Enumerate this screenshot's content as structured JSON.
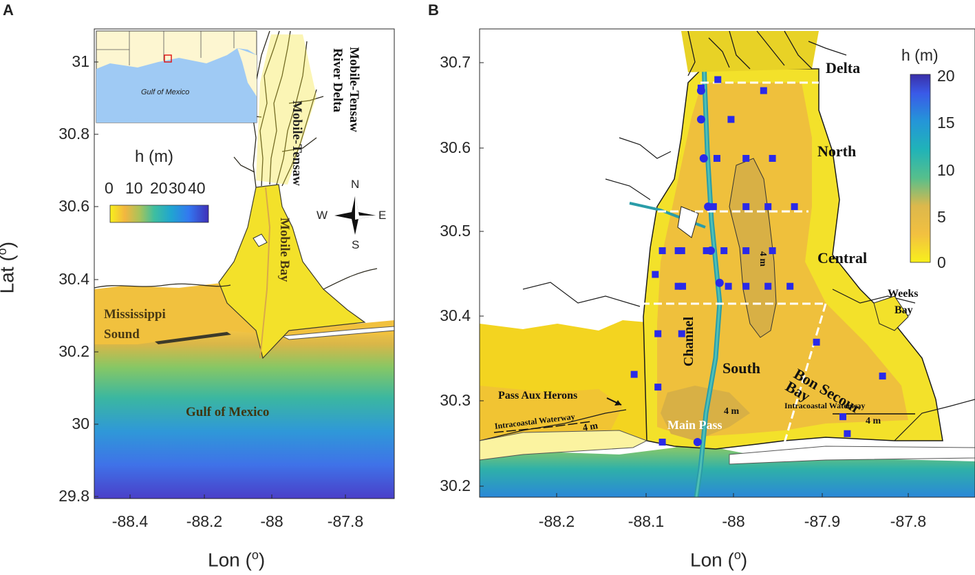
{
  "panel_a": {
    "letter": "A",
    "x_ticks": [
      "-88.4",
      "-88.2",
      "-88",
      "-87.8"
    ],
    "y_ticks": [
      "31",
      "30.8",
      "30.6",
      "30.4",
      "30.2",
      "30",
      "29.8"
    ],
    "xlabel": "Lon (",
    "xlabel_sup": "o",
    "xlabel_tail": ")",
    "ylabel": "Lat (",
    "ylabel_sup": "o",
    "ylabel_tail": ")",
    "colorbar": {
      "title": "h (m)",
      "ticks": [
        "0",
        "10",
        "20",
        "30",
        "40"
      ],
      "range": [
        0,
        40
      ]
    },
    "inset": {
      "label": "Gulf of Mexico"
    },
    "compass": {
      "n": "N",
      "s": "S",
      "e": "E",
      "w": "W"
    },
    "labels": {
      "delta_line1": "Mobile-Tensaw",
      "delta_line2": "River Delta",
      "mobile_bay": "Mobile Bay",
      "ms_sound_line1": "Mississippi",
      "ms_sound_line2": "Sound",
      "gulf": "Gulf of Mexico"
    }
  },
  "panel_b": {
    "letter": "B",
    "x_ticks": [
      "-88.2",
      "-88.1",
      "-88",
      "-87.9",
      "-87.8"
    ],
    "y_ticks": [
      "30.7",
      "30.6",
      "30.5",
      "30.4",
      "30.3",
      "30.2"
    ],
    "xlabel": "Lon (",
    "xlabel_sup": "o",
    "xlabel_tail": ")",
    "colorbar": {
      "title": "h (m)",
      "ticks": [
        "20",
        "15",
        "10",
        "5",
        "0"
      ],
      "range": [
        0,
        20
      ]
    },
    "regions": {
      "delta": "Delta",
      "north": "North",
      "central": "Central",
      "south": "South",
      "channel": "Channel",
      "bon_secour_line1": "Bon Secour",
      "bon_secour_line2": "Bay",
      "weeks_bay_line1": "Weeks",
      "weeks_bay_line2": "Bay",
      "pass_aux_herons": "Pass Aux Herons",
      "main_pass": "Main Pass",
      "iww_left": "Intracoastal Waterway",
      "iww_right": "Intracoastal Waterway",
      "four_m": "4 m"
    },
    "stations": {
      "squares": [
        [
          -88.017,
          30.68
        ],
        [
          -88.036,
          30.67
        ],
        [
          -87.965,
          30.667
        ],
        [
          -88.002,
          30.633
        ],
        [
          -88.018,
          30.587
        ],
        [
          -87.985,
          30.587
        ],
        [
          -87.955,
          30.587
        ],
        [
          -88.022,
          30.53
        ],
        [
          -87.985,
          30.53
        ],
        [
          -87.96,
          30.53
        ],
        [
          -87.93,
          30.53
        ],
        [
          -88.08,
          30.478
        ],
        [
          -88.062,
          30.478
        ],
        [
          -88.058,
          30.478
        ],
        [
          -88.03,
          30.478
        ],
        [
          -88.01,
          30.478
        ],
        [
          -87.985,
          30.478
        ],
        [
          -87.955,
          30.478
        ],
        [
          -88.088,
          30.45
        ],
        [
          -88.062,
          30.436
        ],
        [
          -88.057,
          30.436
        ],
        [
          -88.005,
          30.436
        ],
        [
          -87.985,
          30.436
        ],
        [
          -87.96,
          30.436
        ],
        [
          -87.935,
          30.436
        ],
        [
          -88.085,
          30.38
        ],
        [
          -88.058,
          30.38
        ],
        [
          -87.905,
          30.37
        ],
        [
          -88.112,
          30.332
        ],
        [
          -88.085,
          30.317
        ],
        [
          -87.83,
          30.33
        ],
        [
          -87.875,
          30.282
        ],
        [
          -87.87,
          30.262
        ],
        [
          -88.08,
          30.252
        ]
      ],
      "circles": [
        [
          -88.036,
          30.667
        ],
        [
          -88.036,
          30.633
        ],
        [
          -88.033,
          30.587
        ],
        [
          -88.028,
          30.53
        ],
        [
          -88.025,
          30.478
        ],
        [
          -88.015,
          30.44
        ],
        [
          -88.04,
          30.252
        ]
      ]
    }
  }
}
